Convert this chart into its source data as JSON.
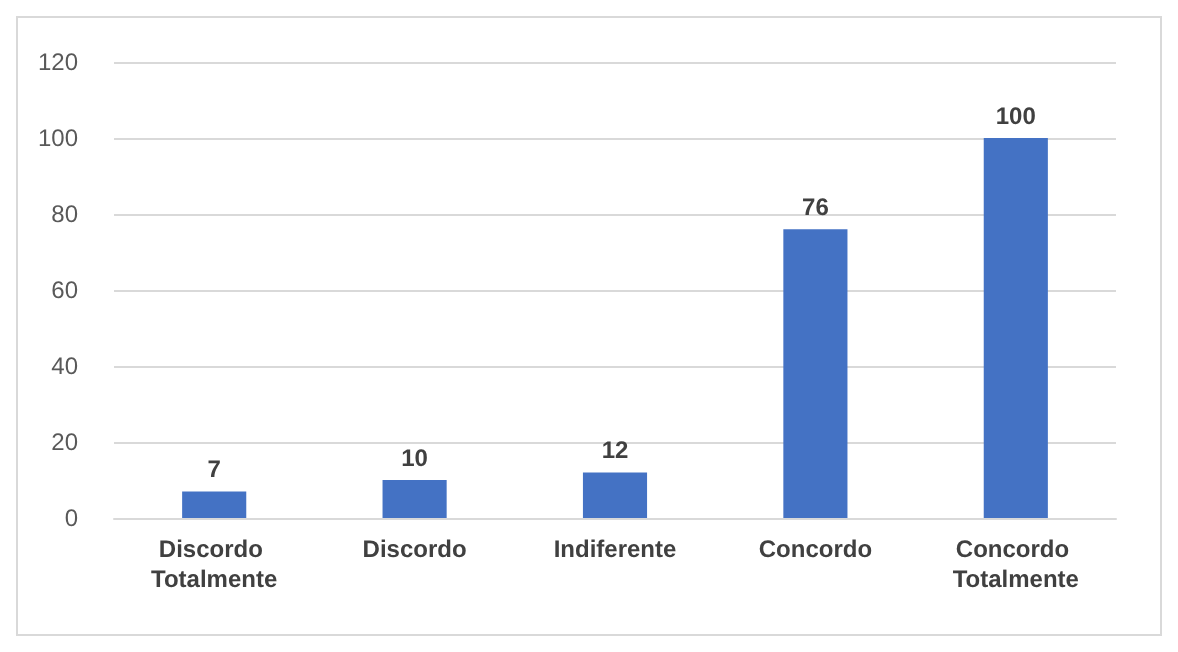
{
  "chart_data": {
    "type": "bar",
    "categories": [
      "Discordo Totalmente",
      "Discordo",
      "Indiferente",
      "Concordo",
      "Concordo Totalmente"
    ],
    "values": [
      7,
      10,
      12,
      76,
      100
    ],
    "color": "#4472c4",
    "ylim": [
      0,
      120
    ],
    "yticks": [
      0,
      20,
      40,
      60,
      80,
      100,
      120
    ],
    "grid": "y",
    "data_labels": true
  }
}
